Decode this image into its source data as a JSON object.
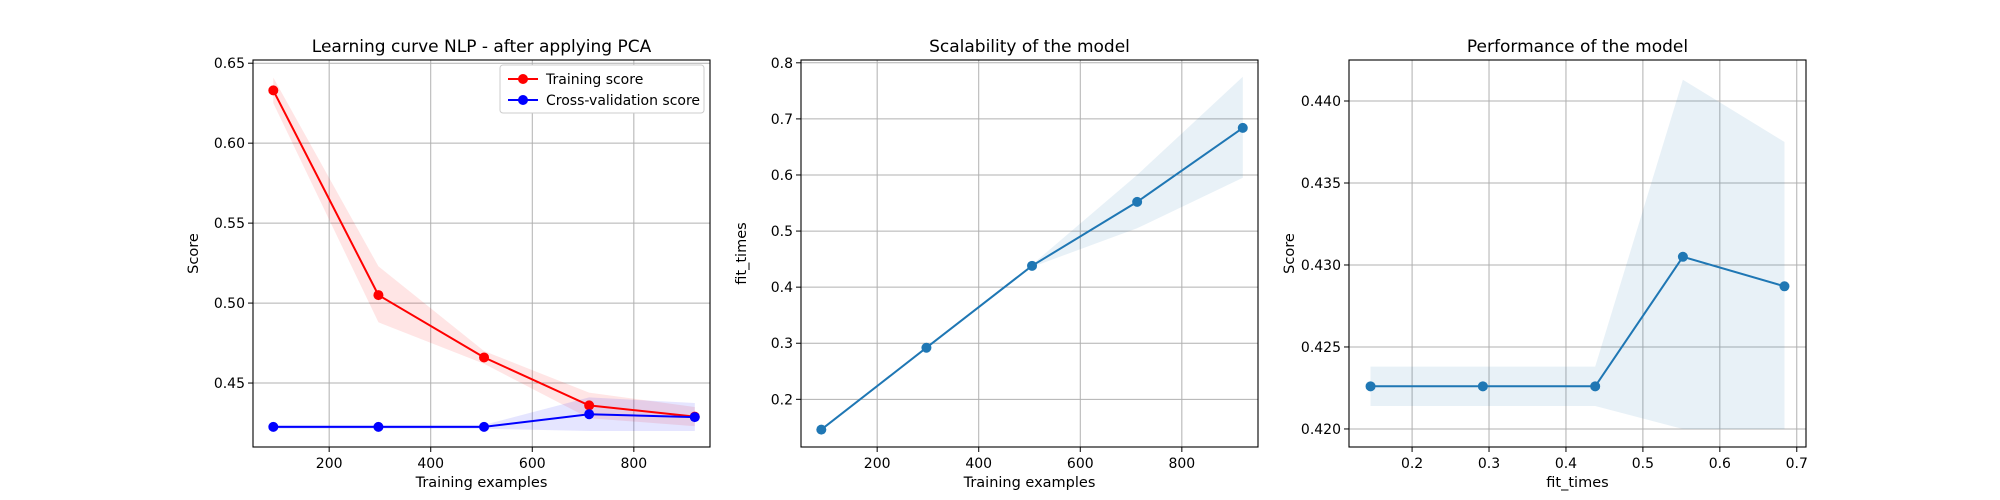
{
  "chart_data": [
    {
      "type": "line",
      "title": "Learning curve NLP - after applying PCA",
      "xlabel": "Training examples",
      "ylabel": "Score",
      "xlim": [
        50,
        950
      ],
      "ylim": [
        0.41,
        0.652
      ],
      "xticks": [
        200,
        400,
        600,
        800
      ],
      "yticks": [
        0.45,
        0.5,
        0.55,
        0.6,
        0.65
      ],
      "ytick_labels": [
        "0.45",
        "0.50",
        "0.55",
        "0.60",
        "0.65"
      ],
      "grid": true,
      "legend": "top-right",
      "x": [
        90,
        297,
        505,
        712,
        920
      ],
      "series": [
        {
          "name": "Training score",
          "color": "#ff0000",
          "values": [
            0.633,
            0.505,
            0.466,
            0.436,
            0.429
          ],
          "band_low": [
            0.625,
            0.488,
            0.462,
            0.428,
            0.423
          ],
          "band_high": [
            0.641,
            0.523,
            0.47,
            0.444,
            0.435
          ]
        },
        {
          "name": "Cross-validation score",
          "color": "#0000ff",
          "values": [
            0.4226,
            0.4226,
            0.4226,
            0.4305,
            0.4287
          ],
          "band_low": [
            0.4214,
            0.4214,
            0.4214,
            0.42,
            0.42
          ],
          "band_high": [
            0.4238,
            0.4238,
            0.4238,
            0.441,
            0.4375
          ]
        }
      ]
    },
    {
      "type": "line",
      "title": "Scalability of the model",
      "xlabel": "Training examples",
      "ylabel": "fit_times",
      "xlim": [
        50,
        950
      ],
      "ylim": [
        0.115,
        0.805
      ],
      "xticks": [
        200,
        400,
        600,
        800
      ],
      "yticks": [
        0.2,
        0.3,
        0.4,
        0.5,
        0.6,
        0.7,
        0.8
      ],
      "ytick_labels": [
        "0.2",
        "0.3",
        "0.4",
        "0.5",
        "0.6",
        "0.7",
        "0.8"
      ],
      "grid": true,
      "x": [
        90,
        297,
        505,
        712,
        920
      ],
      "series": [
        {
          "color": "#1f77b4",
          "values": [
            0.146,
            0.292,
            0.438,
            0.552,
            0.684
          ],
          "band_low": [
            0.144,
            0.29,
            0.436,
            0.505,
            0.595
          ],
          "band_high": [
            0.148,
            0.294,
            0.44,
            0.6,
            0.775
          ]
        }
      ]
    },
    {
      "type": "line",
      "title": "Performance of the model",
      "xlabel": "fit_times",
      "ylabel": "Score",
      "xlim": [
        0.118,
        0.712
      ],
      "ylim": [
        0.4189,
        0.4425
      ],
      "xticks": [
        0.2,
        0.3,
        0.4,
        0.5,
        0.6,
        0.7
      ],
      "yticks": [
        0.42,
        0.425,
        0.43,
        0.435,
        0.44
      ],
      "ytick_labels": [
        "0.420",
        "0.425",
        "0.430",
        "0.435",
        "0.440"
      ],
      "xtick_labels": [
        "0.2",
        "0.3",
        "0.4",
        "0.5",
        "0.6",
        "0.7"
      ],
      "grid": true,
      "x": [
        0.146,
        0.292,
        0.438,
        0.552,
        0.684
      ],
      "series": [
        {
          "color": "#1f77b4",
          "values": [
            0.4226,
            0.4226,
            0.4226,
            0.4305,
            0.4287
          ],
          "band_low": [
            0.4214,
            0.4214,
            0.4214,
            0.42,
            0.42
          ],
          "band_high": [
            0.4238,
            0.4238,
            0.4238,
            0.4413,
            0.4375
          ]
        }
      ]
    }
  ]
}
